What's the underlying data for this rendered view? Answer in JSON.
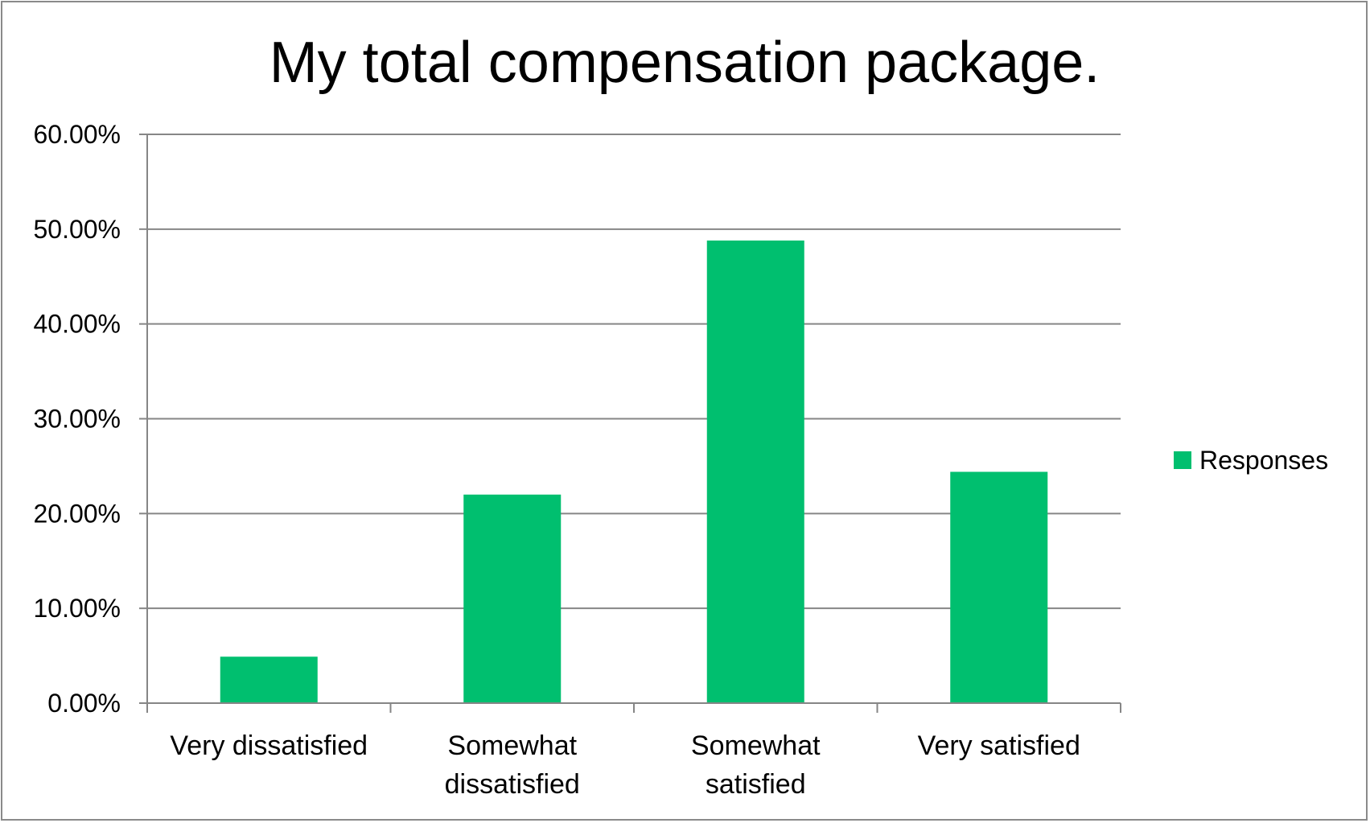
{
  "chart_data": {
    "type": "bar",
    "title": "My total compensation package.",
    "xlabel": "",
    "ylabel": "",
    "categories": [
      [
        "Very dissatisfied"
      ],
      [
        "Somewhat",
        "dissatisfied"
      ],
      [
        "Somewhat",
        "satisfied"
      ],
      [
        "Very satisfied"
      ]
    ],
    "series": [
      {
        "name": "Responses",
        "color": "#00BF6F",
        "values": [
          4.9,
          22.0,
          48.8,
          24.4
        ]
      }
    ],
    "ylim": [
      0,
      60
    ],
    "ytick_values": [
      0,
      10,
      20,
      30,
      40,
      50,
      60
    ],
    "ytick_labels": [
      "0.00%",
      "10.00%",
      "20.00%",
      "30.00%",
      "40.00%",
      "50.00%",
      "60.00%"
    ],
    "value_format": "percent",
    "grid": true,
    "legend": "right",
    "colors": {
      "gridline": "#868686",
      "axis": "#868686",
      "frame": "#8a8a8a"
    }
  }
}
